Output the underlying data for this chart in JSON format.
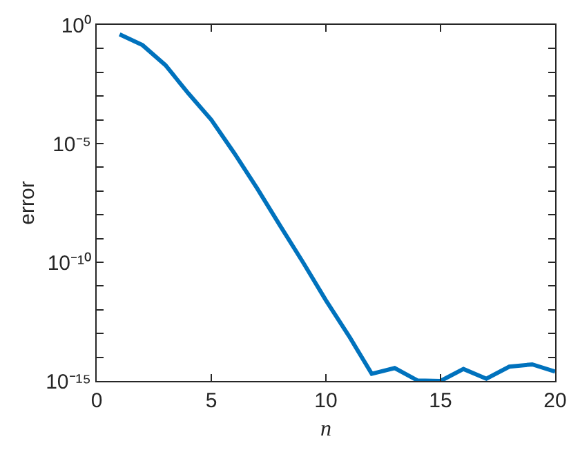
{
  "chart_data": {
    "type": "line",
    "xlabel": "n",
    "ylabel": "error",
    "log": "y",
    "marker": "none",
    "line_style": "solid",
    "x": [
      1,
      2,
      3,
      4,
      5,
      6,
      7,
      8,
      9,
      10,
      11,
      12,
      13,
      14,
      15,
      16,
      17,
      18,
      19,
      20
    ],
    "series": [
      {
        "color": "#0072bd",
        "values": [
          0.4,
          0.14,
          0.02,
          0.0013,
          0.0001,
          4e-06,
          1.3e-07,
          3.5e-09,
          1e-10,
          2.5e-12,
          8e-14,
          2e-15,
          3.5e-15,
          1.05e-15,
          1e-15,
          3.2e-15,
          1.25e-15,
          4e-15,
          5e-15,
          2.5e-15
        ]
      }
    ],
    "xlim": [
      0,
      20
    ],
    "xticks": [
      0,
      5,
      10,
      15,
      20
    ],
    "ylim": [
      1e-15,
      1
    ],
    "yticks": [
      {
        "value": 1,
        "label": "10⁰"
      },
      {
        "value": 0.1,
        "label": null
      },
      {
        "value": 0.01,
        "label": null
      },
      {
        "value": 0.001,
        "label": null
      },
      {
        "value": 0.0001,
        "label": null
      },
      {
        "value": 1e-05,
        "label": "10⁻⁵"
      },
      {
        "value": 1e-06,
        "label": null
      },
      {
        "value": 1e-07,
        "label": null
      },
      {
        "value": 1e-08,
        "label": null
      },
      {
        "value": 1e-09,
        "label": null
      },
      {
        "value": 1e-10,
        "label": "10⁻¹⁰"
      },
      {
        "value": 1e-11,
        "label": null
      },
      {
        "value": 1e-12,
        "label": null
      },
      {
        "value": 1e-13,
        "label": null
      },
      {
        "value": 1e-14,
        "label": null
      },
      {
        "value": 1e-15,
        "label": "10⁻¹⁵"
      }
    ]
  }
}
